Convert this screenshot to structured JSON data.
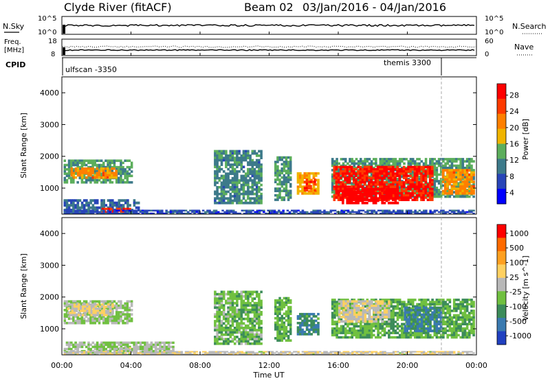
{
  "header": {
    "site": "Clyde River (fitACF)",
    "beam": "Beam 02",
    "date_range": "03/Jan/2016 - 04/Jan/2016"
  },
  "summary": {
    "nsky_label": "N.Sky",
    "nsearch_label": "N.Search",
    "freq_label_1": "Freq.",
    "freq_label_2": "[MHz]",
    "nave_label": "Nave",
    "cpid_label": "CPID",
    "count_ticks_left": [
      "10^5",
      "10^0"
    ],
    "count_ticks_right": [
      "10^5",
      "10^0"
    ],
    "freq_ticks": [
      "18",
      "8"
    ],
    "nave_ticks": [
      "60",
      "0"
    ],
    "cpid_segments": [
      {
        "label": "ulfscan -3350",
        "start_hour": 0.0
      },
      {
        "label": "themis 3300",
        "start_hour": 22.0
      }
    ]
  },
  "colors": {
    "power_scale": [
      "#0000ff",
      "#2845b8",
      "#3d7a8a",
      "#5cae5c",
      "#f0b400",
      "#ff7f00",
      "#ff3a00",
      "#ff0000"
    ],
    "velocity_scale": [
      "#2040c0",
      "#3a7ab0",
      "#3c8c5a",
      "#70c040",
      "#b8b8b8",
      "#ffd060",
      "#ffa020",
      "#ff6a00",
      "#ff0000"
    ]
  },
  "time_axis": {
    "label": "Time UT",
    "ticks": [
      "00:00",
      "04:00",
      "08:00",
      "12:00",
      "16:00",
      "20:00",
      "00:00"
    ]
  },
  "chart_data": [
    {
      "type": "heatmap",
      "title": "Power",
      "xlabel": "",
      "ylabel": "Slant Range [km]",
      "ylim": [
        180,
        4500
      ],
      "xlim": [
        0,
        24
      ],
      "y_ticks": [
        1000,
        2000,
        3000,
        4000
      ],
      "colorbar": {
        "label": "Power [dB]",
        "ticks": [
          "28",
          "24",
          "20",
          "16",
          "12",
          "8",
          "4"
        ],
        "range": [
          0,
          30
        ]
      },
      "patches": [
        {
          "t0": 0.1,
          "t1": 4.1,
          "r0": 1150,
          "r1": 1900,
          "value": 12
        },
        {
          "t0": 0.5,
          "t1": 3.2,
          "r0": 1300,
          "r1": 1650,
          "value": 20
        },
        {
          "t0": 0.1,
          "t1": 4.5,
          "r0": 200,
          "r1": 650,
          "value": 8
        },
        {
          "t0": 2.3,
          "t1": 4.0,
          "r0": 200,
          "r1": 380,
          "value": 26
        },
        {
          "t0": 0.1,
          "t1": 23.9,
          "r0": 180,
          "r1": 320,
          "value": 6
        },
        {
          "t0": 8.8,
          "t1": 11.6,
          "r0": 500,
          "r1": 2200,
          "value": 10
        },
        {
          "t0": 12.3,
          "t1": 13.3,
          "r0": 600,
          "r1": 2000,
          "value": 11
        },
        {
          "t0": 13.6,
          "t1": 14.9,
          "r0": 800,
          "r1": 1500,
          "value": 18
        },
        {
          "t0": 14.0,
          "t1": 14.7,
          "r0": 900,
          "r1": 1300,
          "value": 26
        },
        {
          "t0": 15.6,
          "t1": 23.9,
          "r0": 700,
          "r1": 1950,
          "value": 12
        },
        {
          "t0": 15.7,
          "t1": 21.5,
          "r0": 600,
          "r1": 1700,
          "value": 27
        },
        {
          "t0": 16.2,
          "t1": 19.5,
          "r0": 500,
          "r1": 1000,
          "value": 29
        },
        {
          "t0": 22.0,
          "t1": 23.9,
          "r0": 800,
          "r1": 1600,
          "value": 20
        }
      ]
    },
    {
      "type": "heatmap",
      "title": "Velocity",
      "xlabel": "Time UT",
      "ylabel": "Slant Range [km]",
      "ylim": [
        180,
        4500
      ],
      "xlim": [
        0,
        24
      ],
      "y_ticks": [
        1000,
        2000,
        3000,
        4000
      ],
      "colorbar": {
        "label": "Velocity [m s^-1]",
        "ticks": [
          "1000",
          "500",
          "100",
          "25",
          "-25",
          "-100",
          "-500",
          "-1000"
        ],
        "range": [
          -1000,
          1000
        ]
      },
      "patches": [
        {
          "t0": 0.1,
          "t1": 4.1,
          "r0": 1150,
          "r1": 1900,
          "value": -150
        },
        {
          "t0": 0.3,
          "t1": 3.0,
          "r0": 1400,
          "r1": 1800,
          "value": 120
        },
        {
          "t0": 0.1,
          "t1": 6.5,
          "r0": 200,
          "r1": 600,
          "value": -80
        },
        {
          "t0": 0.1,
          "t1": 23.9,
          "r0": 180,
          "r1": 300,
          "value": 60
        },
        {
          "t0": 3.3,
          "t1": 4.0,
          "r0": 280,
          "r1": 420,
          "value": 10
        },
        {
          "t0": 8.8,
          "t1": 11.6,
          "r0": 500,
          "r1": 2200,
          "value": -250
        },
        {
          "t0": 12.3,
          "t1": 13.3,
          "r0": 600,
          "r1": 2000,
          "value": -300
        },
        {
          "t0": 13.6,
          "t1": 14.9,
          "r0": 800,
          "r1": 1500,
          "value": -500
        },
        {
          "t0": 15.6,
          "t1": 23.9,
          "r0": 700,
          "r1": 1950,
          "value": -300
        },
        {
          "t0": 16.0,
          "t1": 19.0,
          "r0": 1200,
          "r1": 1900,
          "value": 80
        },
        {
          "t0": 19.8,
          "t1": 22.0,
          "r0": 900,
          "r1": 1700,
          "value": -600
        }
      ]
    }
  ]
}
